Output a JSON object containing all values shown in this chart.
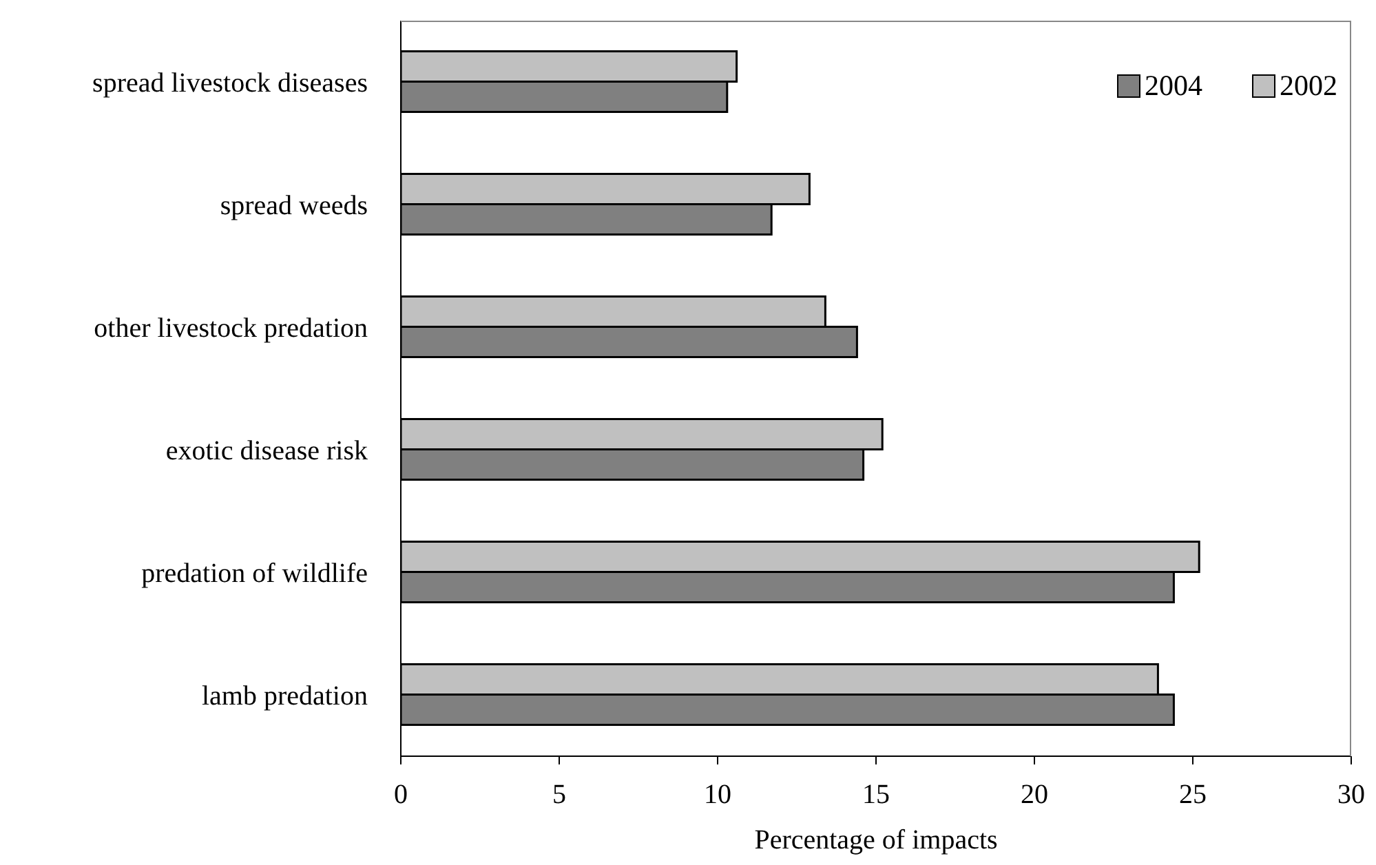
{
  "chart_data": {
    "type": "bar",
    "orientation": "horizontal",
    "xlabel": "Percentage of impacts",
    "categories": [
      "spread livestock diseases",
      "spread weeds",
      "other livestock predation",
      "exotic disease risk",
      "predation of wildlife",
      "lamb predation"
    ],
    "series": [
      {
        "name": "2004",
        "color": "#808080",
        "values": [
          10.3,
          11.7,
          14.4,
          14.6,
          24.4,
          24.4
        ]
      },
      {
        "name": "2002",
        "color": "#c0c0c0",
        "values": [
          10.6,
          12.9,
          13.4,
          15.2,
          25.2,
          23.9
        ]
      }
    ],
    "xlim": [
      0,
      30
    ],
    "xticks": [
      0,
      5,
      10,
      15,
      20,
      25,
      30
    ],
    "grid": false,
    "legend": "top right"
  }
}
